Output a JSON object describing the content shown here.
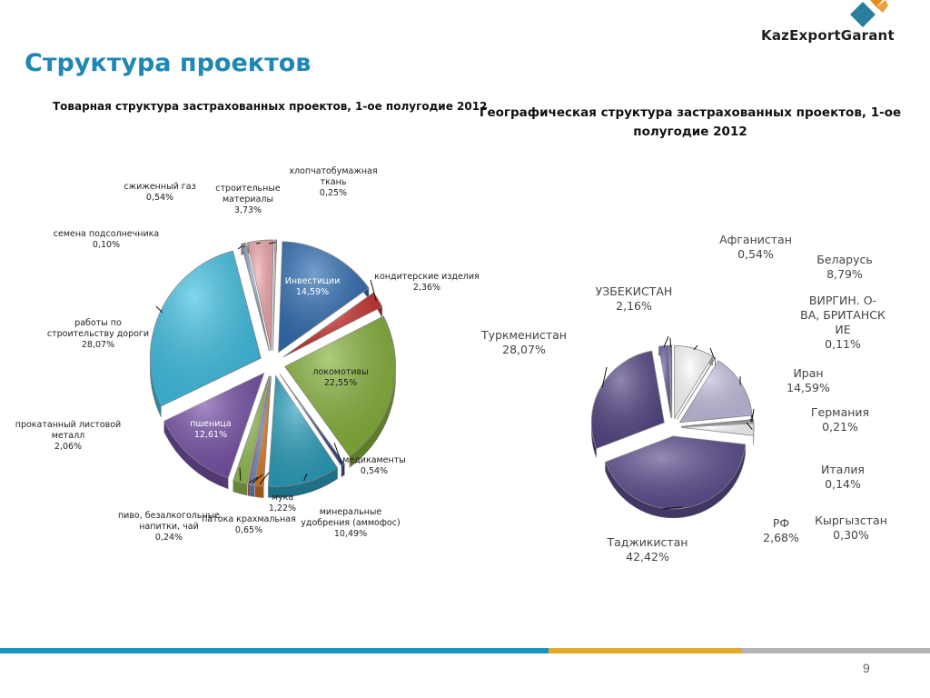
{
  "brand": {
    "name": "KazExportGarant",
    "colors": [
      "#e88a1c",
      "#1b8fb8",
      "#2a6e8e"
    ]
  },
  "slide": {
    "title": "Структура проектов",
    "page_number": "9"
  },
  "footer": {
    "colors": [
      "#1a94c0",
      "#e6a92a",
      "#b4b4b4"
    ]
  },
  "chart_data": [
    {
      "type": "pie",
      "exploded": true,
      "three_d": true,
      "title": "Товарная структура застрахованных проектов, 1-ое полугодие 2012",
      "slices": [
        {
          "label": "Инвестиции",
          "value": 14.59,
          "value_label": "14,59%",
          "color": "#2f6db3"
        },
        {
          "label": "кондитерские изделия",
          "value": 2.36,
          "value_label": "2,36%",
          "color": "#c9302c"
        },
        {
          "label": "локомотивы",
          "value": 22.55,
          "value_label": "22,55%",
          "color": "#86b23a"
        },
        {
          "label": "медикаменты",
          "value": 0.54,
          "value_label": "0,54%",
          "color": "#3a4f8c"
        },
        {
          "label": "минеральные удобрения (аммофос)",
          "value": 10.49,
          "value_label": "10,49%",
          "color": "#2ba0bd"
        },
        {
          "label": "мука",
          "value": 1.22,
          "value_label": "1,22%",
          "color": "#e07b22"
        },
        {
          "label": "патока крахмальная",
          "value": 0.65,
          "value_label": "0,65%",
          "color": "#6f8fd0"
        },
        {
          "label": "пиво, безалкогольные напитки, чай",
          "value": 0.24,
          "value_label": "0,24%",
          "color": "#c04a45"
        },
        {
          "label": "прокатанный листовой металл",
          "value": 2.06,
          "value_label": "2,06%",
          "color": "#94bf52"
        },
        {
          "label": "пшеница",
          "value": 12.61,
          "value_label": "12,61%",
          "color": "#7650a8"
        },
        {
          "label": "работы по строительству дороги",
          "value": 28.07,
          "value_label": "28,07%",
          "color": "#3fc1e4"
        },
        {
          "label": "семена подсолнечника",
          "value": 0.1,
          "value_label": "0,10%",
          "color": "#3a6db2"
        },
        {
          "label": "сжиженный газ",
          "value": 0.54,
          "value_label": "0,54%",
          "color": "#8fa6c8"
        },
        {
          "label": "строительные материалы",
          "value": 3.73,
          "value_label": "3,73%",
          "color": "#f0a8ac"
        },
        {
          "label": "хлопчатобумажная ткань",
          "value": 0.25,
          "value_label": "0,25%",
          "color": "#b8b8b8"
        }
      ]
    },
    {
      "type": "pie",
      "exploded": true,
      "three_d": true,
      "title": "Географическая структура застрахованных проектов, 1-ое полугодие 2012",
      "title_lines": [
        "Географическая структура застрахованных проектов, 1-ое",
        "полугодие 2012"
      ],
      "slices": [
        {
          "label": "Афганистан",
          "value": 0.54,
          "value_label": "0,54%",
          "color": "#5a4e8c"
        },
        {
          "label": "Беларусь",
          "value": 8.79,
          "value_label": "8,79%",
          "color": "#ffffff"
        },
        {
          "label": "ВИРГИН. О-ВА, БРИТАНСКИЕ",
          "label_lines": [
            "ВИРГИН. О-",
            "ВА, БРИТАНСК",
            "ИЕ"
          ],
          "value": 0.11,
          "value_label": "0,11%",
          "color": "#4a4275"
        },
        {
          "label": "Иран",
          "value": 14.59,
          "value_label": "14,59%",
          "color": "#c6bee0"
        },
        {
          "label": "Германия",
          "value": 0.21,
          "value_label": "0,21%",
          "color": "#8c84b4"
        },
        {
          "label": "Италия",
          "value": 0.14,
          "value_label": "0,14%",
          "color": "#ffffff"
        },
        {
          "label": "Кыргызстан",
          "value": 0.3,
          "value_label": "0,30%",
          "color": "#d8d2ec"
        },
        {
          "label": "РФ",
          "value": 2.68,
          "value_label": "2,68%",
          "color": "#ffffff"
        },
        {
          "label": "Таджикистан",
          "value": 42.42,
          "value_label": "42,42%",
          "color": "#5d4d8f"
        },
        {
          "label": "Туркменистан",
          "value": 28.07,
          "value_label": "28,07%",
          "color": "#544585"
        },
        {
          "label": "УЗБЕКИСТАН",
          "value": 2.16,
          "value_label": "2,16%",
          "color": "#6a5aa0"
        }
      ]
    }
  ]
}
